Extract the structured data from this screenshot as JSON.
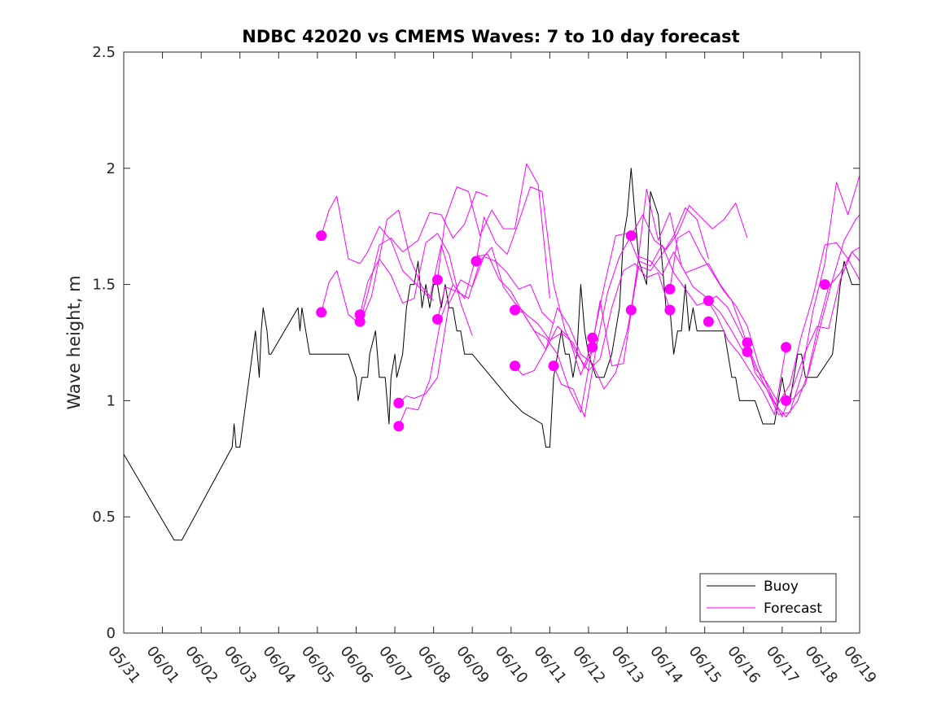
{
  "chart_data": {
    "type": "line",
    "title": "NDBC 42020 vs CMEMS Waves: 7 to 10 day forecast",
    "xlabel": "",
    "ylabel": "Wave height, m",
    "x_ticks": [
      "05/31",
      "06/01",
      "06/02",
      "06/03",
      "06/04",
      "06/05",
      "06/06",
      "06/07",
      "06/08",
      "06/09",
      "06/10",
      "06/11",
      "06/12",
      "06/13",
      "06/14",
      "06/15",
      "06/16",
      "06/17",
      "06/18",
      "06/19"
    ],
    "y_ticks": [
      "0",
      "0.5",
      "1",
      "1.5",
      "2",
      "2.5"
    ],
    "ylim": [
      0,
      2.5
    ],
    "xlim_days": [
      0,
      19
    ],
    "legend_position": "bottom-right",
    "colors": {
      "buoy": "#000000",
      "forecast": "#ff00ff"
    },
    "legend": [
      {
        "label": "Buoy",
        "color": "#000000"
      },
      {
        "label": "Forecast",
        "color": "#ff00ff"
      }
    ],
    "series": [
      {
        "name": "Buoy",
        "x": [
          0.0,
          1.3,
          1.5,
          2.8,
          2.85,
          2.9,
          2.95,
          3.0,
          3.4,
          3.5,
          3.55,
          3.6,
          3.7,
          3.75,
          3.8,
          4.5,
          4.55,
          4.6,
          4.7,
          4.8,
          4.9,
          5.8,
          6.0,
          6.05,
          6.15,
          6.3,
          6.35,
          6.5,
          6.6,
          6.75,
          6.85,
          6.9,
          7.0,
          7.05,
          7.2,
          7.3,
          7.4,
          7.5,
          7.6,
          7.7,
          7.8,
          7.9,
          8.0,
          8.1,
          8.2,
          8.3,
          8.4,
          8.5,
          8.6,
          8.7,
          8.8,
          8.9,
          9.0,
          10.0,
          10.3,
          10.8,
          10.9,
          11.0,
          11.1,
          11.2,
          11.3,
          11.4,
          11.5,
          11.6,
          11.7,
          11.8,
          11.9,
          12.0,
          12.2,
          12.4,
          12.6,
          12.8,
          12.9,
          13.0,
          13.1,
          13.2,
          13.3,
          13.5,
          13.6,
          13.8,
          13.9,
          14.0,
          14.1,
          14.2,
          14.3,
          14.4,
          14.5,
          14.6,
          14.7,
          14.8,
          14.9,
          15.0,
          15.2,
          15.4,
          15.5,
          15.7,
          15.8,
          15.9,
          16.0,
          16.1,
          16.3,
          16.5,
          16.8,
          16.9,
          17.0,
          17.1,
          17.2,
          17.4,
          17.5,
          17.6,
          17.9,
          18.3,
          18.5,
          18.6,
          18.8,
          19.0
        ],
        "y": [
          0.77,
          0.4,
          0.4,
          0.8,
          0.9,
          0.8,
          0.8,
          0.8,
          1.3,
          1.1,
          1.3,
          1.4,
          1.3,
          1.2,
          1.2,
          1.4,
          1.3,
          1.4,
          1.3,
          1.2,
          1.2,
          1.2,
          1.1,
          1.0,
          1.1,
          1.1,
          1.2,
          1.3,
          1.1,
          1.1,
          0.9,
          1.1,
          1.2,
          1.1,
          1.2,
          1.4,
          1.5,
          1.5,
          1.6,
          1.4,
          1.5,
          1.4,
          1.5,
          1.5,
          1.4,
          1.5,
          1.4,
          1.4,
          1.3,
          1.3,
          1.2,
          1.2,
          1.2,
          1.0,
          0.95,
          0.9,
          0.8,
          0.8,
          1.1,
          1.2,
          1.3,
          1.2,
          1.2,
          1.1,
          1.2,
          1.5,
          1.3,
          1.2,
          1.1,
          1.1,
          1.2,
          1.4,
          1.7,
          1.8,
          2.0,
          1.8,
          1.6,
          1.5,
          1.9,
          1.8,
          1.6,
          1.4,
          1.4,
          1.2,
          1.3,
          1.3,
          1.5,
          1.3,
          1.4,
          1.3,
          1.3,
          1.3,
          1.3,
          1.3,
          1.3,
          1.1,
          1.1,
          1.0,
          1.0,
          1.0,
          1.0,
          0.9,
          0.9,
          1.0,
          1.1,
          1.0,
          1.0,
          1.2,
          1.2,
          1.1,
          1.1,
          1.2,
          1.5,
          1.6,
          1.5,
          1.5
        ]
      },
      {
        "x": [
          5.1,
          5.3,
          5.5,
          5.8,
          6.1,
          6.3,
          6.6,
          6.9,
          7.2,
          7.5,
          7.9,
          8.2,
          8.5
        ],
        "y": [
          1.71,
          1.82,
          1.88,
          1.61,
          1.59,
          1.64,
          1.75,
          1.69,
          1.56,
          1.51,
          1.44,
          1.67,
          1.5
        ]
      },
      {
        "x": [
          5.1,
          5.3,
          5.5,
          5.8,
          6.1,
          6.4,
          6.8,
          7.1,
          7.4,
          7.7,
          8.0
        ],
        "y": [
          1.38,
          1.51,
          1.56,
          1.37,
          1.33,
          1.45,
          1.78,
          1.82,
          1.61,
          1.49,
          1.43
        ]
      },
      {
        "x": [
          6.1,
          6.3,
          6.6,
          6.9,
          7.2,
          7.5,
          7.8,
          8.1,
          8.4,
          8.7,
          9.0
        ],
        "y": [
          1.37,
          1.51,
          1.61,
          1.54,
          1.42,
          1.44,
          1.68,
          1.72,
          1.63,
          1.42,
          1.28
        ]
      },
      {
        "x": [
          6.1,
          6.3,
          6.6,
          6.9,
          7.2,
          7.6,
          7.9,
          8.2,
          8.5,
          8.8,
          9.1,
          9.4
        ],
        "y": [
          1.34,
          1.46,
          1.67,
          1.7,
          1.64,
          1.69,
          1.81,
          1.8,
          1.7,
          1.76,
          1.9,
          1.88
        ]
      },
      {
        "x": [
          7.1,
          7.3,
          7.5,
          7.8,
          8.1,
          8.4,
          8.7,
          9.0,
          9.3,
          9.6,
          9.9,
          10.2,
          10.5,
          10.8,
          11.1
        ],
        "y": [
          0.99,
          1.02,
          1.01,
          1.03,
          1.1,
          1.42,
          1.52,
          1.49,
          1.62,
          1.6,
          1.55,
          1.48,
          1.5,
          1.38,
          1.33
        ]
      },
      {
        "x": [
          7.1,
          7.3,
          7.6,
          7.9,
          8.2,
          8.5,
          8.8,
          9.1,
          9.4,
          9.7,
          10.0,
          10.3,
          10.6,
          10.9,
          11.2,
          11.5,
          11.8,
          12.1
        ],
        "y": [
          0.89,
          0.97,
          0.96,
          1.09,
          1.36,
          1.5,
          1.44,
          1.62,
          1.63,
          1.52,
          1.47,
          1.38,
          1.3,
          1.27,
          1.2,
          1.05,
          0.95,
          1.23
        ]
      },
      {
        "x": [
          8.1,
          8.3,
          8.6,
          8.9,
          9.2,
          9.5,
          9.8,
          10.1,
          10.4,
          10.7,
          11.0
        ],
        "y": [
          1.52,
          1.78,
          1.92,
          1.9,
          1.71,
          1.82,
          1.74,
          1.74,
          2.02,
          1.93,
          1.44
        ]
      },
      {
        "x": [
          8.1,
          8.3,
          8.6,
          8.9,
          9.2,
          9.5,
          9.8,
          10.1,
          10.4,
          10.7,
          11.0,
          11.3,
          11.6,
          11.9,
          12.2
        ],
        "y": [
          1.35,
          1.49,
          1.47,
          1.44,
          1.6,
          1.66,
          1.49,
          1.42,
          1.37,
          1.33,
          1.26,
          1.29,
          1.25,
          1.14,
          1.27
        ]
      },
      {
        "x": [
          9.1,
          9.3,
          9.6,
          9.9,
          10.2,
          10.5,
          10.8,
          11.1,
          11.4,
          11.7,
          12.0,
          12.3,
          12.6,
          12.9,
          13.2,
          13.5,
          13.8,
          14.1
        ],
        "y": [
          1.6,
          1.79,
          1.68,
          1.63,
          1.77,
          1.92,
          1.9,
          1.5,
          1.3,
          1.2,
          1.13,
          1.18,
          1.4,
          1.56,
          1.59,
          1.53,
          1.55,
          1.39
        ]
      },
      {
        "x": [
          10.1,
          10.3,
          10.6,
          10.9,
          11.2,
          11.5,
          11.8,
          12.1,
          12.4,
          12.7,
          13.0,
          13.3,
          13.6,
          13.9,
          14.2,
          14.5,
          14.8,
          15.1,
          15.4,
          15.7,
          16.0
        ],
        "y": [
          1.39,
          1.38,
          1.3,
          1.22,
          1.32,
          1.27,
          1.11,
          1.25,
          1.49,
          1.71,
          1.72,
          1.6,
          1.58,
          1.67,
          1.55,
          1.48,
          1.41,
          1.43,
          1.38,
          1.3,
          1.21
        ]
      },
      {
        "x": [
          10.1,
          10.3,
          10.6,
          10.9,
          11.2,
          11.5,
          11.8,
          12.1,
          12.4,
          12.7,
          13.0,
          13.3,
          13.6,
          13.9,
          14.2,
          14.5,
          14.8,
          15.1
        ],
        "y": [
          1.15,
          1.11,
          1.13,
          1.22,
          1.4,
          1.32,
          1.2,
          1.16,
          1.05,
          1.12,
          1.3,
          1.58,
          1.56,
          1.63,
          1.71,
          1.83,
          1.78,
          1.61
        ]
      },
      {
        "x": [
          11.1,
          11.3,
          11.6,
          11.9,
          12.2,
          12.5,
          12.8,
          13.1,
          13.4,
          13.7,
          14.0,
          14.3,
          14.6,
          14.9,
          15.2,
          15.5,
          15.8,
          16.1
        ],
        "y": [
          1.15,
          1.07,
          1.05,
          0.93,
          1.23,
          1.47,
          1.62,
          1.71,
          1.8,
          1.69,
          1.65,
          1.72,
          1.84,
          1.79,
          1.74,
          1.78,
          1.85,
          1.7
        ]
      },
      {
        "x": [
          12.1,
          12.3,
          12.6,
          12.9,
          13.2,
          13.5,
          13.8,
          14.1,
          14.4,
          14.7,
          15.0,
          15.3,
          15.6,
          15.9,
          16.2,
          16.5,
          16.8,
          17.1
        ],
        "y": [
          1.24,
          1.43,
          1.15,
          1.16,
          1.49,
          1.91,
          1.69,
          1.81,
          1.58,
          1.49,
          1.45,
          1.37,
          1.26,
          1.2,
          1.12,
          1.04,
          0.94,
          1.23
        ]
      },
      {
        "x": [
          13.1,
          13.3,
          13.6,
          13.9,
          14.2,
          14.5,
          14.8,
          15.1,
          15.4,
          15.7,
          16.0,
          16.3,
          16.6,
          16.9,
          17.2,
          17.5,
          17.8,
          18.1,
          18.4,
          18.7,
          19.0
        ],
        "y": [
          1.39,
          1.62,
          1.6,
          1.54,
          1.64,
          1.55,
          1.57,
          1.59,
          1.5,
          1.43,
          1.29,
          1.14,
          1.08,
          0.99,
          1.07,
          1.28,
          1.45,
          1.67,
          1.68,
          1.61,
          1.52
        ]
      },
      {
        "x": [
          14.1,
          14.3,
          14.6,
          14.9,
          15.2,
          15.5,
          15.8,
          16.1,
          16.4,
          16.7,
          17.0,
          17.3,
          17.6,
          17.9,
          18.2,
          18.5,
          18.8,
          19.0
        ],
        "y": [
          1.48,
          1.7,
          1.73,
          1.63,
          1.55,
          1.47,
          1.41,
          1.32,
          1.15,
          1.03,
          0.93,
          1.07,
          1.21,
          1.32,
          1.31,
          1.52,
          1.64,
          1.6
        ]
      },
      {
        "x": [
          15.1,
          15.3,
          15.6,
          15.9,
          16.2,
          16.5,
          16.8,
          17.1,
          17.4,
          17.7,
          18.0,
          18.3,
          18.6,
          18.9,
          19.0
        ],
        "y": [
          1.43,
          1.45,
          1.4,
          1.3,
          1.2,
          1.08,
          0.99,
          0.93,
          1.0,
          1.13,
          1.33,
          1.52,
          1.69,
          1.78,
          1.8
        ]
      },
      {
        "x": [
          16.1,
          16.3,
          16.6,
          16.9,
          17.2,
          17.5,
          17.8,
          18.1,
          18.4,
          18.7,
          19.0
        ],
        "y": [
          1.25,
          1.12,
          1.05,
          0.94,
          0.95,
          1.11,
          1.39,
          1.59,
          1.94,
          1.8,
          1.97
        ]
      },
      {
        "x": [
          17.1,
          17.3,
          17.6,
          17.9,
          18.2,
          18.5,
          18.8,
          19.0
        ],
        "y": [
          1.0,
          1.01,
          1.07,
          1.3,
          1.49,
          1.55,
          1.64,
          1.66
        ]
      }
    ],
    "forecast_markers": {
      "x": [
        5.1,
        5.1,
        6.1,
        6.1,
        7.1,
        7.1,
        8.1,
        8.1,
        9.1,
        10.1,
        10.1,
        11.1,
        12.1,
        12.1,
        13.1,
        13.1,
        14.1,
        14.1,
        15.1,
        15.1,
        16.1,
        16.1,
        17.1,
        17.1,
        18.1
      ],
      "y": [
        1.71,
        1.38,
        1.37,
        1.34,
        0.99,
        0.89,
        1.52,
        1.35,
        1.6,
        1.39,
        1.15,
        1.15,
        1.27,
        1.23,
        1.71,
        1.39,
        1.48,
        1.39,
        1.43,
        1.34,
        1.25,
        1.21,
        1.23,
        1.0,
        1.5
      ]
    }
  }
}
